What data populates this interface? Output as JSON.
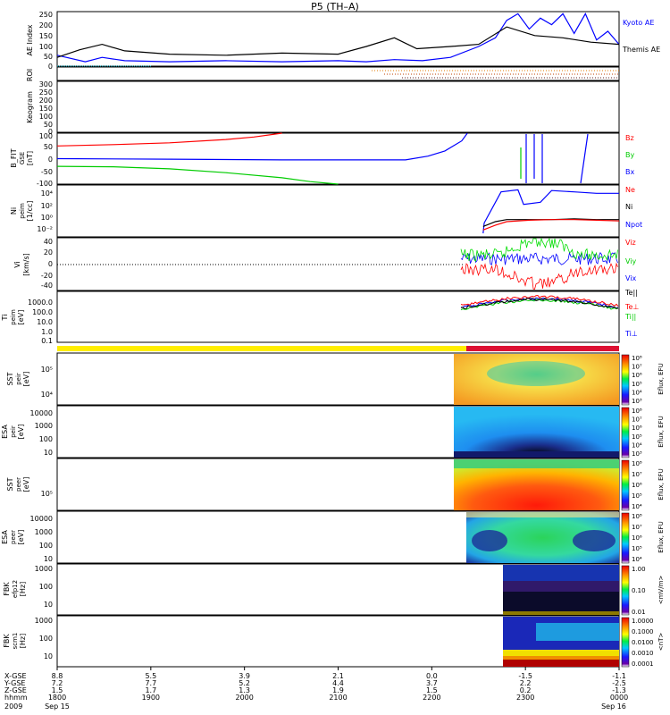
{
  "chart_data": {
    "type": "line",
    "title": "P5 (TH–A)",
    "time_axis": {
      "ticks": [
        "1800",
        "1900",
        "2000",
        "2100",
        "2200",
        "2300",
        "0000"
      ],
      "rows": [
        {
          "label": "X-GSE",
          "values": [
            "8.8",
            "5.5",
            "3.9",
            "2.1",
            "0.0",
            "-1.5",
            "-1.1"
          ]
        },
        {
          "label": "Y-GSE",
          "values": [
            "7.2",
            "7.7",
            "5.2",
            "4.4",
            "3.7",
            "2.2",
            "-2.5"
          ]
        },
        {
          "label": "Z-GSE",
          "values": [
            "1.5",
            "1.7",
            "1.3",
            "1.9",
            "1.5",
            "0.2",
            "-1.3"
          ]
        },
        {
          "label": "hhmm",
          "values": [
            "1800",
            "1900",
            "2000",
            "2100",
            "2200",
            "2300",
            "0000"
          ]
        }
      ],
      "year": "2009",
      "date_start": "Sep 15",
      "date_end": "Sep 16"
    },
    "panels": [
      {
        "id": "ae",
        "ylabel": "AE Index",
        "yticks": [
          "0",
          "50",
          "100",
          "150",
          "200",
          "250"
        ],
        "ylim": [
          0,
          250
        ],
        "legend": [
          {
            "name": "Kyoto AE",
            "color": "#0000ff"
          },
          {
            "name": "Themis AE",
            "color": "#000000"
          }
        ],
        "series": [
          {
            "name": "Kyoto AE",
            "color": "#0000ff",
            "x": [
              0,
              0.05,
              0.08,
              0.12,
              0.2,
              0.3,
              0.4,
              0.5,
              0.55,
              0.6,
              0.65,
              0.7,
              0.75,
              0.78,
              0.8,
              0.82,
              0.84,
              0.86,
              0.88,
              0.9,
              0.92,
              0.94,
              0.96,
              0.98,
              1.0
            ],
            "y": [
              50,
              20,
              40,
              25,
              20,
              25,
              20,
              25,
              20,
              30,
              25,
              40,
              90,
              130,
              210,
              240,
              170,
              220,
              190,
              240,
              150,
              240,
              120,
              160,
              100
            ]
          },
          {
            "name": "Themis AE",
            "color": "#000000",
            "x": [
              0,
              0.04,
              0.08,
              0.12,
              0.2,
              0.3,
              0.4,
              0.5,
              0.55,
              0.6,
              0.64,
              0.7,
              0.75,
              0.8,
              0.85,
              0.9,
              0.95,
              1.0
            ],
            "y": [
              40,
              75,
              100,
              70,
              55,
              50,
              60,
              55,
              90,
              130,
              80,
              90,
              100,
              180,
              140,
              130,
              110,
              100
            ]
          }
        ]
      },
      {
        "id": "roi",
        "ylabel": "ROI",
        "yticks": [
          "0"
        ],
        "ylim": [
          0,
          1
        ]
      },
      {
        "id": "keogram",
        "ylabel": "Keogram",
        "yticks": [
          "0",
          "50",
          "100",
          "150",
          "200",
          "250",
          "300"
        ],
        "ylim": [
          0,
          300
        ]
      },
      {
        "id": "bfit",
        "ylabel": "B_FIT",
        "ylabel_sub": "GSE",
        "unit": "[nT]",
        "yticks": [
          "-100",
          "-50",
          "0",
          "50",
          "100"
        ],
        "ylim": [
          -100,
          100
        ],
        "legend": [
          {
            "name": "Bz",
            "color": "#ff0000"
          },
          {
            "name": "By",
            "color": "#00cc00"
          },
          {
            "name": "Bx",
            "color": "#0000ff"
          }
        ],
        "series": [
          {
            "name": "Bz",
            "color": "#ff0000",
            "x": [
              0,
              0.1,
              0.2,
              0.3,
              0.35,
              0.4
            ],
            "y": [
              50,
              55,
              62,
              75,
              85,
              100
            ]
          },
          {
            "name": "By",
            "color": "#00cc00",
            "x": [
              0,
              0.1,
              0.2,
              0.3,
              0.4,
              0.45,
              0.5
            ],
            "y": [
              -30,
              -32,
              -40,
              -55,
              -75,
              -90,
              -100
            ]
          },
          {
            "name": "Bx",
            "color": "#0000ff",
            "x": [
              0,
              0.2,
              0.4,
              0.55,
              0.62,
              0.66,
              0.69,
              0.72,
              0.73
            ],
            "y": [
              0,
              -2,
              -5,
              -5,
              -5,
              10,
              30,
              70,
              100
            ]
          }
        ]
      },
      {
        "id": "density",
        "ylabel": "Ni",
        "ylabel_sub": "peim",
        "unit": "[1/cc]",
        "yticks": [
          "10⁻²",
          "10⁰",
          "10²",
          "10⁴"
        ],
        "ylim": [
          -2.5,
          5
        ],
        "legend": [
          {
            "name": "Ne",
            "color": "#ff0000"
          },
          {
            "name": "Ni",
            "color": "#000000"
          },
          {
            "name": "Npot",
            "color": "#0000ff"
          }
        ],
        "series": [
          {
            "name": "Npot",
            "color": "#0000ff",
            "x": [
              0.758,
              0.76,
              0.79,
              0.82,
              0.83,
              0.86,
              0.88,
              0.92,
              0.96,
              1.0
            ],
            "y": [
              -2,
              -0.5,
              4,
              4.3,
              2.2,
              2.5,
              4.2,
              4.0,
              3.8,
              3.8
            ]
          },
          {
            "name": "Ni",
            "color": "#000000",
            "x": [
              0.758,
              0.78,
              0.8,
              0.84,
              0.88,
              0.92,
              0.96,
              1.0
            ],
            "y": [
              -1,
              -0.3,
              0,
              0,
              0,
              0.1,
              0,
              0
            ]
          },
          {
            "name": "Ne",
            "color": "#ff0000",
            "x": [
              0.758,
              0.78,
              0.8,
              0.84,
              0.88,
              0.92,
              0.96,
              1.0
            ],
            "y": [
              -1.5,
              -0.8,
              -0.3,
              -0.1,
              0,
              0,
              -0.1,
              -0.2
            ]
          }
        ]
      },
      {
        "id": "velocity",
        "ylabel": "Vi",
        "unit": "[km/s]",
        "yticks": [
          "-40",
          "-20",
          "0",
          "20",
          "40"
        ],
        "ylim": [
          -50,
          50
        ],
        "legend": [
          {
            "name": "Viz",
            "color": "#ff0000"
          },
          {
            "name": "Viy",
            "color": "#00cc00"
          },
          {
            "name": "Vix",
            "color": "#0000ff"
          }
        ]
      },
      {
        "id": "temp",
        "ylabel": "Ti",
        "ylabel_sub": "peim",
        "unit": "[eV]",
        "yticks": [
          "0.1",
          "1.0",
          "10.0",
          "100.0",
          "1000.0"
        ],
        "ylim": [
          -1,
          3.5
        ],
        "legend": [
          {
            "name": "Te||",
            "color": "#000000"
          },
          {
            "name": "Te⊥",
            "color": "#ff0000"
          },
          {
            "name": "Ti||",
            "color": "#00cc00"
          },
          {
            "name": "Ti⊥",
            "color": "#0000ff"
          }
        ]
      },
      {
        "id": "sst_ion",
        "ylabel": "SST",
        "ylabel_sub": "peir",
        "unit": "[eV]",
        "yticks": [
          "10⁴",
          "10⁵"
        ],
        "colorbar": {
          "label": "Eflux, EFU",
          "ticks": [
            "10⁸",
            "10⁷",
            "10⁶",
            "10⁵",
            "10⁴",
            "10³"
          ]
        }
      },
      {
        "id": "esa_ion",
        "ylabel": "ESA",
        "ylabel_sub": "peir",
        "unit": "[eV]",
        "yticks": [
          "10",
          "100",
          "1000",
          "10000"
        ],
        "colorbar": {
          "label": "Eflux, EFU",
          "ticks": [
            "10⁸",
            "10⁷",
            "10⁶",
            "10⁵",
            "10⁴",
            "10³"
          ]
        }
      },
      {
        "id": "sst_el",
        "ylabel": "SST",
        "ylabel_sub": "peer",
        "unit": "[eV]",
        "yticks": [
          "10⁵"
        ],
        "colorbar": {
          "label": "Eflux, EFU",
          "ticks": [
            "10⁸",
            "10⁷",
            "10⁶",
            "10⁵",
            "10⁴"
          ]
        }
      },
      {
        "id": "esa_el",
        "ylabel": "ESA",
        "ylabel_sub": "peer",
        "unit": "[eV]",
        "yticks": [
          "10",
          "100",
          "1000",
          "10000"
        ],
        "colorbar": {
          "label": "Eflux, EFU",
          "ticks": [
            "10⁸",
            "10⁷",
            "10⁶",
            "10⁵",
            "10⁴"
          ]
        }
      },
      {
        "id": "fbk_e",
        "ylabel": "FBK",
        "ylabel_sub": "efp12",
        "unit": "[Hz]",
        "yticks": [
          "10",
          "100",
          "1000"
        ],
        "colorbar": {
          "label": "<mV/m>",
          "ticks": [
            "1.00",
            "0.10",
            "0.01"
          ]
        }
      },
      {
        "id": "fbk_b",
        "ylabel": "FBK",
        "ylabel_sub": "scm1",
        "unit": "[Hz]",
        "yticks": [
          "10",
          "100",
          "1000"
        ],
        "colorbar": {
          "label": "<nT>",
          "ticks": [
            "1.0000",
            "0.1000",
            "0.0100",
            "0.0010",
            "0.0001"
          ]
        }
      }
    ]
  }
}
